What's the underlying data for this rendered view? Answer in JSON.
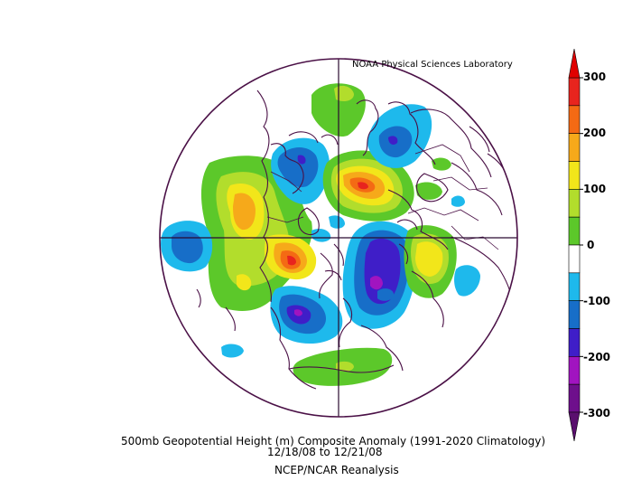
{
  "credit": "NOAA Physical Sciences Laboratory",
  "caption": {
    "title": "500mb Geopotential Height (m) Composite Anomaly (1991-2020 Climatology)",
    "dates": "12/18/08   to 12/21/08",
    "source": "NCEP/NCAR Reanalysis"
  },
  "colorbar": {
    "labels": [
      "300",
      "200",
      "100",
      "0",
      "-100",
      "-200",
      "-300"
    ],
    "levels": [
      {
        "from": 250,
        "to": 300,
        "color": "#e8241e"
      },
      {
        "from": 200,
        "to": 250,
        "color": "#f46a14"
      },
      {
        "from": 150,
        "to": 200,
        "color": "#f6a91a"
      },
      {
        "from": 100,
        "to": 150,
        "color": "#f2e61a"
      },
      {
        "from": 50,
        "to": 100,
        "color": "#b2dd2c"
      },
      {
        "from": 0,
        "to": 50,
        "color": "#5cc82a"
      },
      {
        "from": -50,
        "to": 0,
        "color": "#ffffff"
      },
      {
        "from": -100,
        "to": -50,
        "color": "#1eb9ec"
      },
      {
        "from": -150,
        "to": -100,
        "color": "#176ec8"
      },
      {
        "from": -200,
        "to": -150,
        "color": "#3f1ec8"
      },
      {
        "from": -250,
        "to": -200,
        "color": "#a114c0"
      },
      {
        "from": -300,
        "to": -250,
        "color": "#6e0f8c"
      }
    ],
    "over_color": "#e00000",
    "under_color": "#5a0f6e"
  }
}
